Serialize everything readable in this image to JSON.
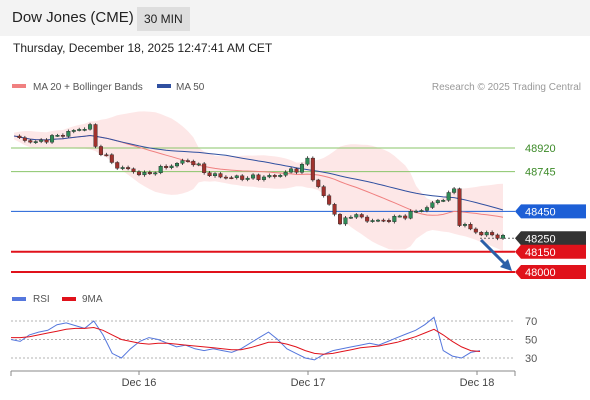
{
  "header": {
    "symbol": "Dow Jones (CME)",
    "interval": "30 MIN",
    "timestamp": "Thursday, December 18, 2025 12:47:41 AM CET"
  },
  "legend": {
    "ma20_label": "MA 20 + Bollinger Bands",
    "ma50_label": "MA 50",
    "copyright": "Research © 2025 Trading Central",
    "rsi_label": "RSI",
    "rsi_ma_label": "9MA"
  },
  "colors": {
    "ma20": "#f08080",
    "ma50": "#3050a0",
    "bollinger_fill": "#fde3e3",
    "candle_up": "#2e8b57",
    "candle_down": "#a0322d",
    "resistance": "#8ac56a",
    "pivot": "#1d5fd6",
    "support": "#e0121b",
    "last_price": "#333333",
    "rsi": "#5577dd",
    "rsi_ma": "#e0121b",
    "arrow": "#2a5fa8"
  },
  "chart_data": [
    {
      "type": "candlestick",
      "title": "Dow Jones (CME) 30 MIN",
      "x_ticks": [
        "Dec 16",
        "Dec 17",
        "Dec 18"
      ],
      "y_range": [
        47970,
        49430
      ],
      "grid": false,
      "legend_position": "top-left",
      "series": [
        {
          "name": "MA 20 + Bollinger Bands",
          "kind": "moving_average"
        },
        {
          "name": "MA 50",
          "kind": "moving_average"
        }
      ],
      "levels": [
        {
          "label": "48920",
          "value": 48920,
          "role": "resistance"
        },
        {
          "label": "48745",
          "value": 48745,
          "role": "resistance"
        },
        {
          "label": "48450",
          "value": 48450,
          "role": "pivot"
        },
        {
          "label": "48250",
          "value": 48250,
          "role": "last_price"
        },
        {
          "label": "48150",
          "value": 48150,
          "role": "support"
        },
        {
          "label": "48000",
          "value": 48000,
          "role": "support"
        }
      ],
      "price_path": [
        [
          0,
          49000
        ],
        [
          4,
          48960
        ],
        [
          8,
          49010
        ],
        [
          12,
          49060
        ],
        [
          14,
          49080
        ],
        [
          15,
          48930
        ],
        [
          17,
          48850
        ],
        [
          19,
          48780
        ],
        [
          21,
          48760
        ],
        [
          24,
          48720
        ],
        [
          28,
          48780
        ],
        [
          32,
          48830
        ],
        [
          34,
          48780
        ],
        [
          36,
          48720
        ],
        [
          40,
          48700
        ],
        [
          44,
          48700
        ],
        [
          48,
          48710
        ],
        [
          50,
          48740
        ],
        [
          52,
          48760
        ],
        [
          54,
          48830
        ],
        [
          55,
          48700
        ],
        [
          57,
          48560
        ],
        [
          59,
          48440
        ],
        [
          60,
          48350
        ],
        [
          62,
          48430
        ],
        [
          64,
          48400
        ],
        [
          66,
          48380
        ],
        [
          68,
          48380
        ],
        [
          70,
          48400
        ],
        [
          72,
          48420
        ],
        [
          74,
          48450
        ],
        [
          76,
          48480
        ],
        [
          78,
          48530
        ],
        [
          80,
          48570
        ],
        [
          81,
          48620
        ],
        [
          82,
          48360
        ],
        [
          84,
          48320
        ],
        [
          86,
          48280
        ],
        [
          88,
          48280
        ],
        [
          90,
          48250
        ]
      ]
    },
    {
      "type": "line",
      "title": "RSI",
      "y_ticks": [
        70,
        50,
        30
      ],
      "y_range": [
        20,
        80
      ],
      "series": [
        {
          "name": "RSI",
          "values": [
            50,
            48,
            55,
            58,
            60,
            66,
            68,
            65,
            62,
            70,
            55,
            35,
            30,
            40,
            48,
            52,
            50,
            46,
            42,
            44,
            40,
            38,
            40,
            38,
            36,
            40,
            46,
            52,
            58,
            50,
            40,
            35,
            30,
            28,
            34,
            38,
            40,
            42,
            44,
            46,
            44,
            48,
            52,
            56,
            60,
            66,
            74,
            38,
            32,
            30,
            36,
            38
          ]
        },
        {
          "name": "9MA",
          "values": [
            52,
            52,
            53,
            55,
            57,
            59,
            61,
            62,
            62,
            63,
            60,
            55,
            50,
            48,
            46,
            45,
            46,
            46,
            45,
            44,
            43,
            42,
            41,
            40,
            39,
            39,
            41,
            44,
            47,
            47,
            45,
            42,
            38,
            35,
            34,
            35,
            37,
            39,
            41,
            42,
            43,
            45,
            47,
            50,
            53,
            57,
            61,
            55,
            48,
            42,
            38,
            37
          ]
        }
      ]
    }
  ]
}
